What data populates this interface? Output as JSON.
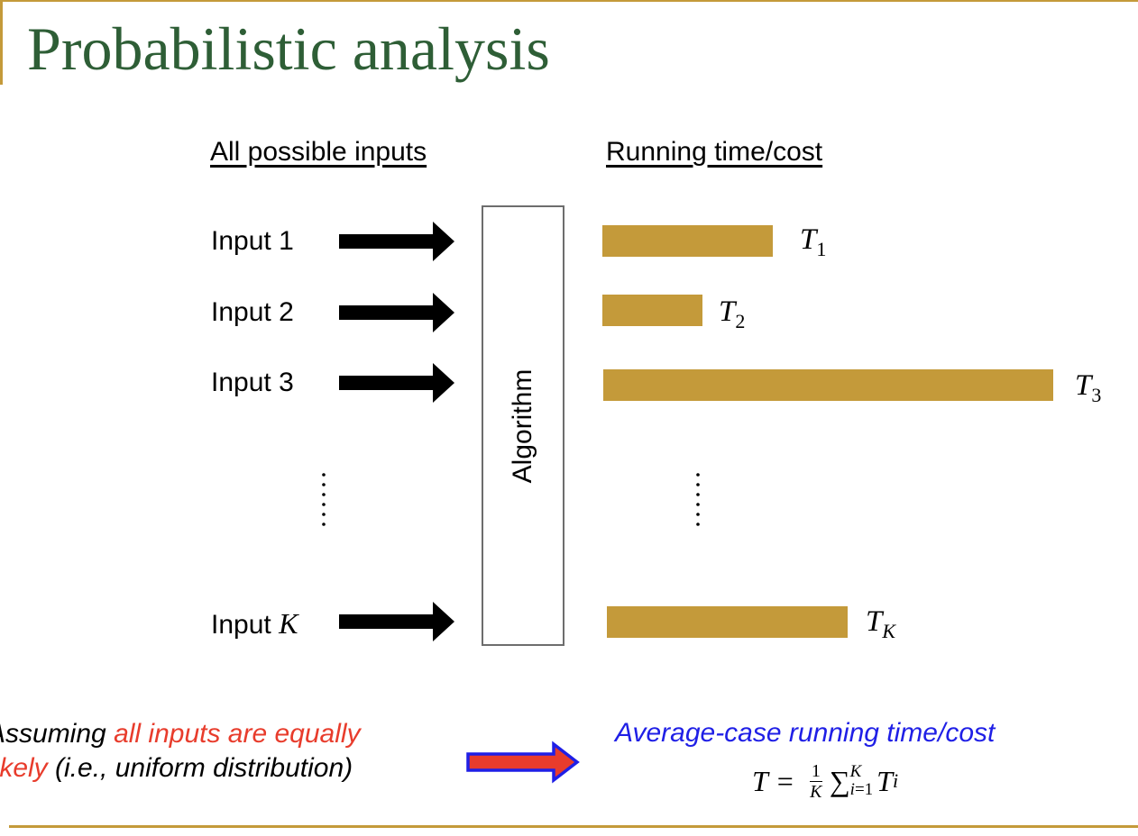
{
  "slide": {
    "title": "Probabilistic analysis",
    "accent_color": "#c49a3a",
    "title_color": "#2e5e36"
  },
  "diagram": {
    "inputs_heading": "All possible inputs",
    "running_heading": "Running time/cost",
    "inputs": [
      {
        "prefix": "Input ",
        "index": "1",
        "index_is_math": false
      },
      {
        "prefix": "Input ",
        "index": "2",
        "index_is_math": false
      },
      {
        "prefix": "Input ",
        "index": "3",
        "index_is_math": false
      },
      {
        "prefix": "Input ",
        "index": "K",
        "index_is_math": true
      }
    ],
    "ellipsis": "……",
    "algorithm_label": "Algorithm",
    "outputs": [
      {
        "symbol": "T",
        "subscript": "1"
      },
      {
        "symbol": "T",
        "subscript": "2"
      },
      {
        "symbol": "T",
        "subscript": "3"
      },
      {
        "symbol": "T",
        "subscript": "K"
      }
    ],
    "arrow_color": "#000000",
    "bar_color": "#c49a3a"
  },
  "conclusion": {
    "assume_prefix": "Assuming ",
    "assume_highlight_1": "all inputs are equally",
    "assume_highlight_2": "likely",
    "assume_suffix": " (i.e., uniform distribution)",
    "highlight_color": "#e83c2c",
    "avg_title": "Average-case running time/cost",
    "avg_color": "#1f1fe6",
    "formula": {
      "lhs": "T",
      "equals": "=",
      "frac_num": "1",
      "frac_den": "K",
      "sum_symbol": "∑",
      "sum_upper": "K",
      "sum_lower_var": "i",
      "sum_lower_eq": "=1",
      "term": "T",
      "term_sub": "i"
    }
  }
}
